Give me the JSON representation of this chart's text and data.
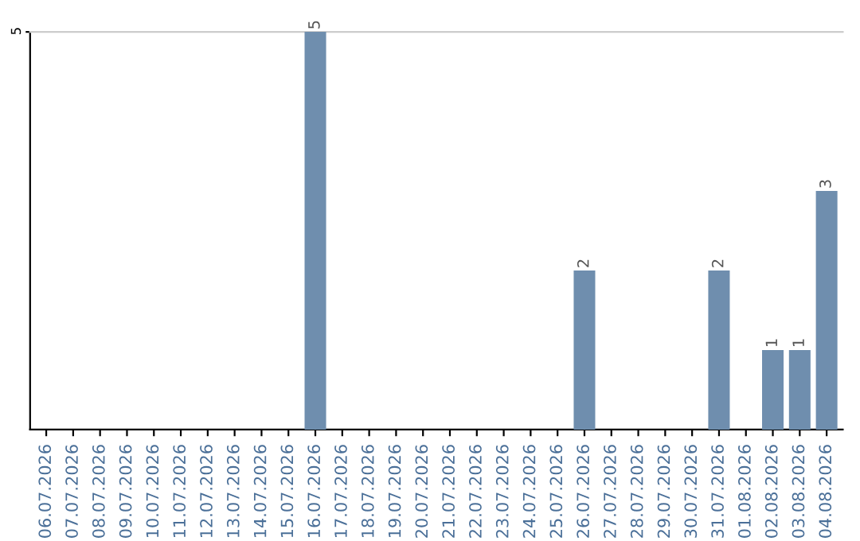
{
  "chart_data": {
    "type": "bar",
    "categories": [
      "06.07.2026",
      "07.07.2026",
      "08.07.2026",
      "09.07.2026",
      "10.07.2026",
      "11.07.2026",
      "12.07.2026",
      "13.07.2026",
      "14.07.2026",
      "15.07.2026",
      "16.07.2026",
      "17.07.2026",
      "18.07.2026",
      "19.07.2026",
      "20.07.2026",
      "21.07.2026",
      "22.07.2026",
      "23.07.2026",
      "24.07.2026",
      "25.07.2026",
      "26.07.2026",
      "27.07.2026",
      "28.07.2026",
      "29.07.2026",
      "30.07.2026",
      "31.07.2026",
      "01.08.2026",
      "02.08.2026",
      "03.08.2026",
      "04.08.2026"
    ],
    "values": [
      0,
      0,
      0,
      0,
      0,
      0,
      0,
      0,
      0,
      0,
      5,
      0,
      0,
      0,
      0,
      0,
      0,
      0,
      0,
      0,
      2,
      0,
      0,
      0,
      0,
      2,
      0,
      1,
      1,
      3
    ],
    "value_labels": [
      null,
      null,
      null,
      null,
      null,
      null,
      null,
      null,
      null,
      null,
      "5",
      null,
      null,
      null,
      null,
      null,
      null,
      null,
      null,
      null,
      "2",
      null,
      null,
      null,
      null,
      "2",
      null,
      "1",
      "1",
      "3"
    ],
    "color": "#6f8eae",
    "ylim": [
      0,
      5
    ],
    "yticks": [
      5
    ]
  }
}
